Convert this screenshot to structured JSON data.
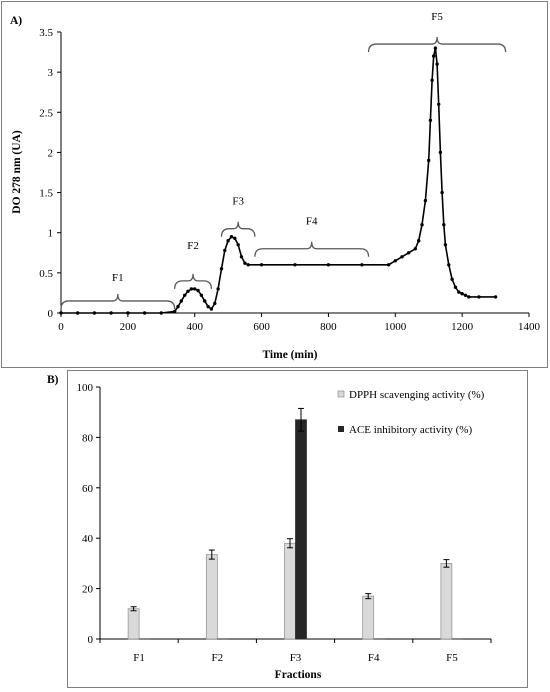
{
  "chart_data": [
    {
      "type": "line",
      "panel_label": "A)",
      "xlabel": "Time (min)",
      "ylabel": "DO 278 nm (UA)",
      "xlim": [
        0,
        1400
      ],
      "ylim": [
        0,
        3.5
      ],
      "x_ticks": [
        "0",
        "200",
        "400",
        "600",
        "800",
        "1000",
        "1200",
        "1400"
      ],
      "y_ticks": [
        "0",
        "0.5",
        "1",
        "1.5",
        "2",
        "2.5",
        "3",
        "3.5"
      ],
      "grid": false,
      "series": [
        {
          "x": [
            0,
            50,
            100,
            150,
            200,
            250,
            300,
            340,
            350,
            360,
            370,
            380,
            390,
            400,
            410,
            420,
            430,
            440,
            450,
            460,
            470,
            480,
            490,
            500,
            510,
            520,
            530,
            540,
            550,
            560,
            600,
            700,
            800,
            900,
            980,
            1000,
            1020,
            1040,
            1060,
            1070,
            1080,
            1090,
            1100,
            1105,
            1110,
            1115,
            1120,
            1125,
            1130,
            1135,
            1140,
            1145,
            1150,
            1160,
            1170,
            1180,
            1190,
            1200,
            1210,
            1220,
            1250,
            1300
          ],
          "y": [
            0,
            0,
            0,
            0,
            0,
            0,
            0,
            0.02,
            0.08,
            0.15,
            0.22,
            0.27,
            0.3,
            0.3,
            0.28,
            0.22,
            0.15,
            0.08,
            0.05,
            0.12,
            0.3,
            0.55,
            0.78,
            0.9,
            0.95,
            0.93,
            0.85,
            0.7,
            0.62,
            0.6,
            0.6,
            0.6,
            0.6,
            0.6,
            0.6,
            0.65,
            0.7,
            0.75,
            0.8,
            0.9,
            1.1,
            1.4,
            1.9,
            2.4,
            2.9,
            3.2,
            3.3,
            3.1,
            2.6,
            2.0,
            1.5,
            1.1,
            0.85,
            0.6,
            0.42,
            0.32,
            0.26,
            0.24,
            0.22,
            0.2,
            0.2,
            0.2
          ]
        }
      ],
      "annotations": [
        {
          "label": "F1",
          "x_range": [
            0,
            340
          ],
          "brace_y": 0.15,
          "label_y": 0.45
        },
        {
          "label": "F2",
          "x_range": [
            340,
            450
          ],
          "brace_y": 0.4,
          "label_y": 0.85
        },
        {
          "label": "F3",
          "x_range": [
            480,
            580
          ],
          "brace_y": 1.05,
          "label_y": 1.4
        },
        {
          "label": "F4",
          "x_range": [
            580,
            920
          ],
          "brace_y": 0.8,
          "label_y": 1.15
        },
        {
          "label": "F5",
          "x_range": [
            920,
            1330
          ],
          "brace_y": 3.35,
          "label_y": 3.7
        }
      ]
    },
    {
      "type": "bar",
      "panel_label": "B)",
      "xlabel": "Fractions",
      "ylabel": "",
      "categories": [
        "F1",
        "F2",
        "F3",
        "F4",
        "F5"
      ],
      "ylim": [
        0,
        100
      ],
      "y_ticks": [
        "0",
        "20",
        "40",
        "60",
        "80",
        "100"
      ],
      "grid": false,
      "legend_position": "top-right",
      "series": [
        {
          "name": "DPPH scavenging activity (%)",
          "color": "#d9d9d9",
          "values": [
            12,
            33.5,
            38,
            17,
            30
          ],
          "errors": [
            0.8,
            1.8,
            1.8,
            1.0,
            1.5
          ]
        },
        {
          "name": "ACE inhibitory activity (%)",
          "color": "#262626",
          "values": [
            0,
            0,
            87,
            0,
            0
          ],
          "errors": [
            0,
            0,
            4.5,
            0,
            0
          ]
        }
      ]
    }
  ]
}
